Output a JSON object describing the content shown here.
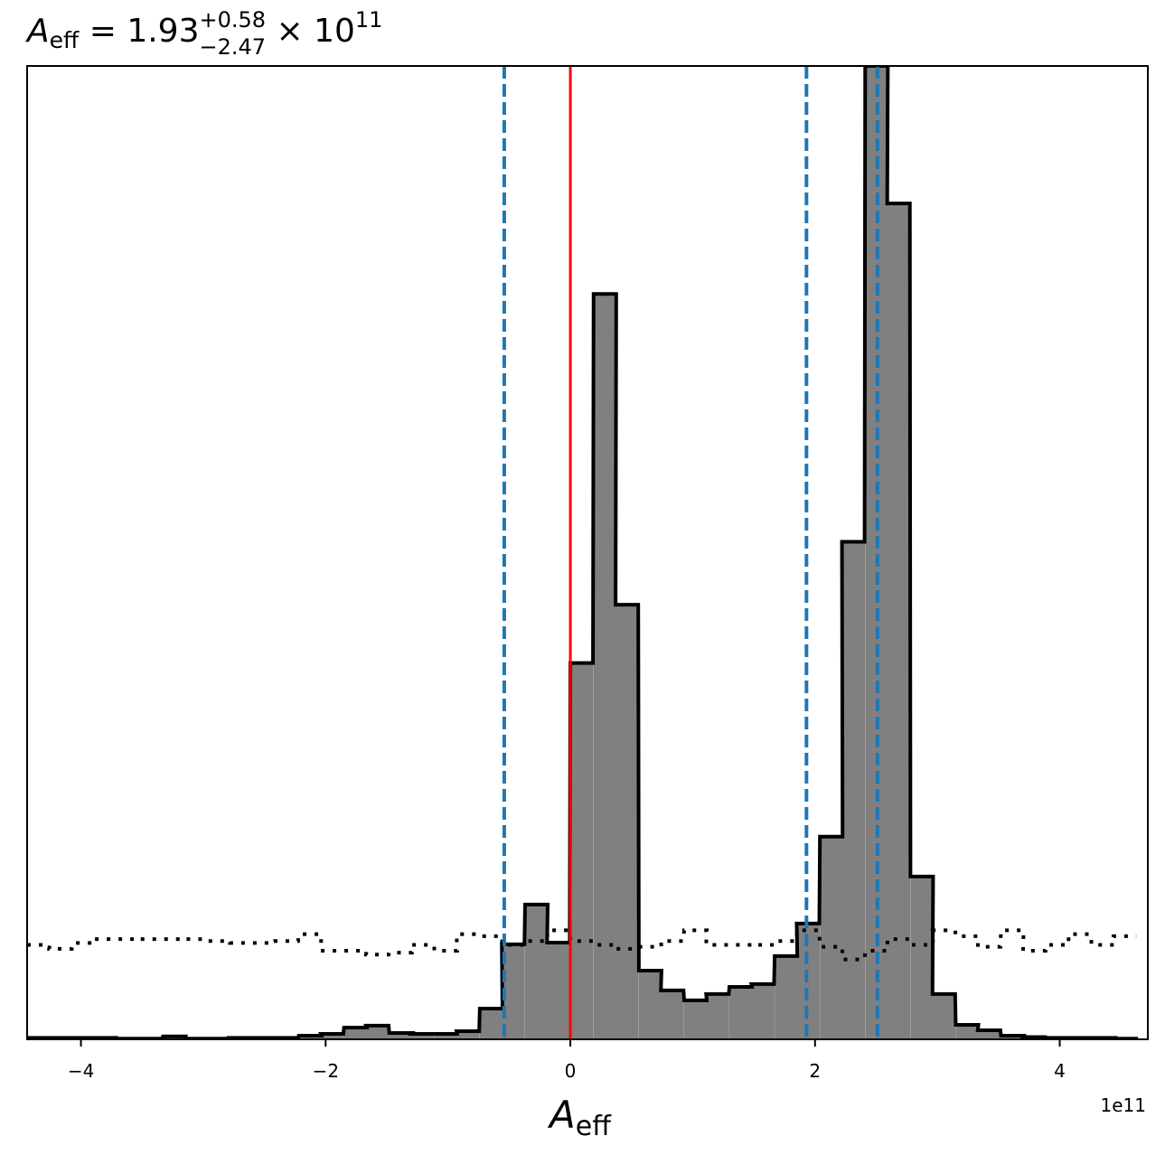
{
  "chart_data": {
    "type": "histogram",
    "title": {
      "symbol": "A",
      "subscript": "eff",
      "equals": " = ",
      "value": "1.93",
      "upper_err": "+0.58",
      "lower_err": "−2.47",
      "times": " × 10",
      "exponent": "11"
    },
    "xlabel": {
      "symbol": "A",
      "subscript": "eff"
    },
    "x_offset_text": "1e11",
    "xlim": [
      -4.44,
      4.72
    ],
    "ylim": [
      0,
      1.0
    ],
    "x_ticks": [
      -4,
      -2,
      0,
      2,
      4
    ],
    "x_tick_labels": [
      "−4",
      "−2",
      "0",
      "2",
      "4"
    ],
    "y_ticks_visible": false,
    "grid": false,
    "bin_width": 0.185,
    "posterior_histogram": {
      "fill_color": "#808080",
      "edge_color": "#000000",
      "bins": [
        {
          "x0": -4.44,
          "y": 0.0015
        },
        {
          "x0": -4.26,
          "y": 0.0015
        },
        {
          "x0": -4.07,
          "y": 0.0015
        },
        {
          "x0": -3.89,
          "y": 0.0015
        },
        {
          "x0": -3.7,
          "y": 0.0007
        },
        {
          "x0": -3.52,
          "y": 0.0007
        },
        {
          "x0": -3.33,
          "y": 0.003
        },
        {
          "x0": -3.15,
          "y": 0.0007
        },
        {
          "x0": -2.96,
          "y": 0.0007
        },
        {
          "x0": -2.78,
          "y": 0.0015
        },
        {
          "x0": -2.59,
          "y": 0.0015
        },
        {
          "x0": -2.41,
          "y": 0.0015
        },
        {
          "x0": -2.22,
          "y": 0.0037
        },
        {
          "x0": -2.04,
          "y": 0.0056
        },
        {
          "x0": -1.85,
          "y": 0.0121
        },
        {
          "x0": -1.67,
          "y": 0.014
        },
        {
          "x0": -1.48,
          "y": 0.0065
        },
        {
          "x0": -1.3,
          "y": 0.0056
        },
        {
          "x0": -1.11,
          "y": 0.0056
        },
        {
          "x0": -0.93,
          "y": 0.0084
        },
        {
          "x0": -0.74,
          "y": 0.0316
        },
        {
          "x0": -0.56,
          "y": 0.0976
        },
        {
          "x0": -0.37,
          "y": 0.1385
        },
        {
          "x0": -0.19,
          "y": 0.0994
        },
        {
          "x0": 0.0,
          "y": 0.3866
        },
        {
          "x0": 0.19,
          "y": 0.7658
        },
        {
          "x0": 0.37,
          "y": 0.4465
        },
        {
          "x0": 0.56,
          "y": 0.0706
        },
        {
          "x0": 0.74,
          "y": 0.0502
        },
        {
          "x0": 0.93,
          "y": 0.04
        },
        {
          "x0": 1.11,
          "y": 0.0465
        },
        {
          "x0": 1.3,
          "y": 0.0539
        },
        {
          "x0": 1.48,
          "y": 0.0567
        },
        {
          "x0": 1.67,
          "y": 0.0855
        },
        {
          "x0": 1.85,
          "y": 0.119
        },
        {
          "x0": 2.04,
          "y": 0.2082
        },
        {
          "x0": 2.22,
          "y": 0.5112
        },
        {
          "x0": 2.41,
          "y": 1.0
        },
        {
          "x0": 2.59,
          "y": 0.8587
        },
        {
          "x0": 2.78,
          "y": 0.1673
        },
        {
          "x0": 2.96,
          "y": 0.0465
        },
        {
          "x0": 3.15,
          "y": 0.0149
        },
        {
          "x0": 3.33,
          "y": 0.0093
        },
        {
          "x0": 3.52,
          "y": 0.0037
        },
        {
          "x0": 3.7,
          "y": 0.0023
        },
        {
          "x0": 3.89,
          "y": 0.0015
        },
        {
          "x0": 4.07,
          "y": 0.0015
        },
        {
          "x0": 4.26,
          "y": 0.0015
        },
        {
          "x0": 4.44,
          "y": 0.0007
        }
      ]
    },
    "prior_histogram": {
      "line_style": "dotted",
      "color": "#000000",
      "bins": [
        {
          "x0": -4.44,
          "y": 0.097
        },
        {
          "x0": -4.26,
          "y": 0.093
        },
        {
          "x0": -4.07,
          "y": 0.099
        },
        {
          "x0": -3.89,
          "y": 0.103
        },
        {
          "x0": -3.7,
          "y": 0.103
        },
        {
          "x0": -3.52,
          "y": 0.103
        },
        {
          "x0": -3.33,
          "y": 0.103
        },
        {
          "x0": -3.15,
          "y": 0.103
        },
        {
          "x0": -2.96,
          "y": 0.101
        },
        {
          "x0": -2.78,
          "y": 0.099
        },
        {
          "x0": -2.59,
          "y": 0.099
        },
        {
          "x0": -2.41,
          "y": 0.101
        },
        {
          "x0": -2.22,
          "y": 0.108
        },
        {
          "x0": -2.04,
          "y": 0.091
        },
        {
          "x0": -1.85,
          "y": 0.091
        },
        {
          "x0": -1.67,
          "y": 0.087
        },
        {
          "x0": -1.48,
          "y": 0.089
        },
        {
          "x0": -1.3,
          "y": 0.097
        },
        {
          "x0": -1.11,
          "y": 0.091
        },
        {
          "x0": -0.93,
          "y": 0.108
        },
        {
          "x0": -0.74,
          "y": 0.106
        },
        {
          "x0": -0.56,
          "y": 0.097
        },
        {
          "x0": -0.37,
          "y": 0.101
        },
        {
          "x0": -0.19,
          "y": 0.112
        },
        {
          "x0": 0.0,
          "y": 0.101
        },
        {
          "x0": 0.19,
          "y": 0.097
        },
        {
          "x0": 0.37,
          "y": 0.093
        },
        {
          "x0": 0.56,
          "y": 0.095
        },
        {
          "x0": 0.74,
          "y": 0.101
        },
        {
          "x0": 0.93,
          "y": 0.112
        },
        {
          "x0": 1.11,
          "y": 0.097
        },
        {
          "x0": 1.3,
          "y": 0.097
        },
        {
          "x0": 1.48,
          "y": 0.097
        },
        {
          "x0": 1.67,
          "y": 0.101
        },
        {
          "x0": 1.85,
          "y": 0.112
        },
        {
          "x0": 2.04,
          "y": 0.095
        },
        {
          "x0": 2.22,
          "y": 0.082
        },
        {
          "x0": 2.41,
          "y": 0.091
        },
        {
          "x0": 2.59,
          "y": 0.103
        },
        {
          "x0": 2.78,
          "y": 0.097
        },
        {
          "x0": 2.96,
          "y": 0.112
        },
        {
          "x0": 3.15,
          "y": 0.106
        },
        {
          "x0": 3.33,
          "y": 0.095
        },
        {
          "x0": 3.52,
          "y": 0.112
        },
        {
          "x0": 3.7,
          "y": 0.091
        },
        {
          "x0": 3.89,
          "y": 0.097
        },
        {
          "x0": 4.07,
          "y": 0.108
        },
        {
          "x0": 4.26,
          "y": 0.097
        },
        {
          "x0": 4.44,
          "y": 0.106
        }
      ]
    },
    "vertical_lines": [
      {
        "x": -0.54,
        "color": "#1f77b4",
        "style": "dashed",
        "role": "lower-bound"
      },
      {
        "x": 1.93,
        "color": "#1f77b4",
        "style": "dashed",
        "role": "median"
      },
      {
        "x": 2.51,
        "color": "#1f77b4",
        "style": "dashed",
        "role": "upper-bound"
      },
      {
        "x": 0.0,
        "color": "#ff0000",
        "style": "solid",
        "role": "reference-value"
      }
    ]
  }
}
